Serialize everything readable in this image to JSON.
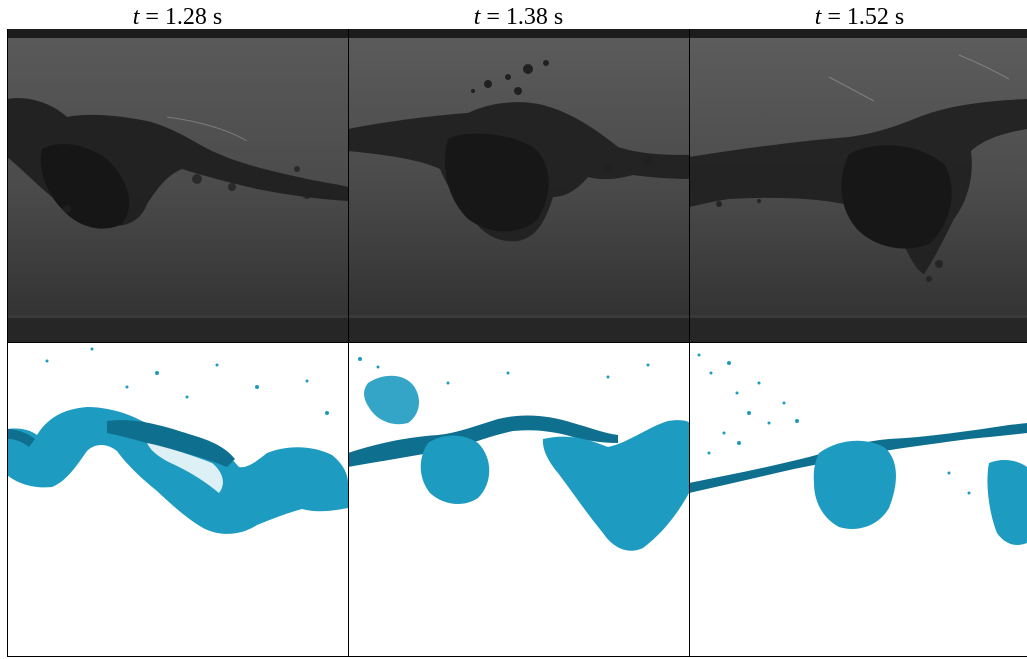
{
  "colors": {
    "frame": "#000000",
    "photo_bg": "#4a4a4a",
    "photo_dark": "#1e1e1e",
    "sim_fluid": "#1e9bc0",
    "sim_fluid_dark": "#0e6f8f",
    "sim_bg": "#ffffff"
  },
  "columns": [
    {
      "t_symbol": "t",
      "time_text": " = 1.28 s"
    },
    {
      "t_symbol": "t",
      "time_text": " = 1.38 s"
    },
    {
      "t_symbol": "t",
      "time_text": " = 1.52 s"
    }
  ],
  "rows": [
    "experiment-photo",
    "simulation-render"
  ]
}
